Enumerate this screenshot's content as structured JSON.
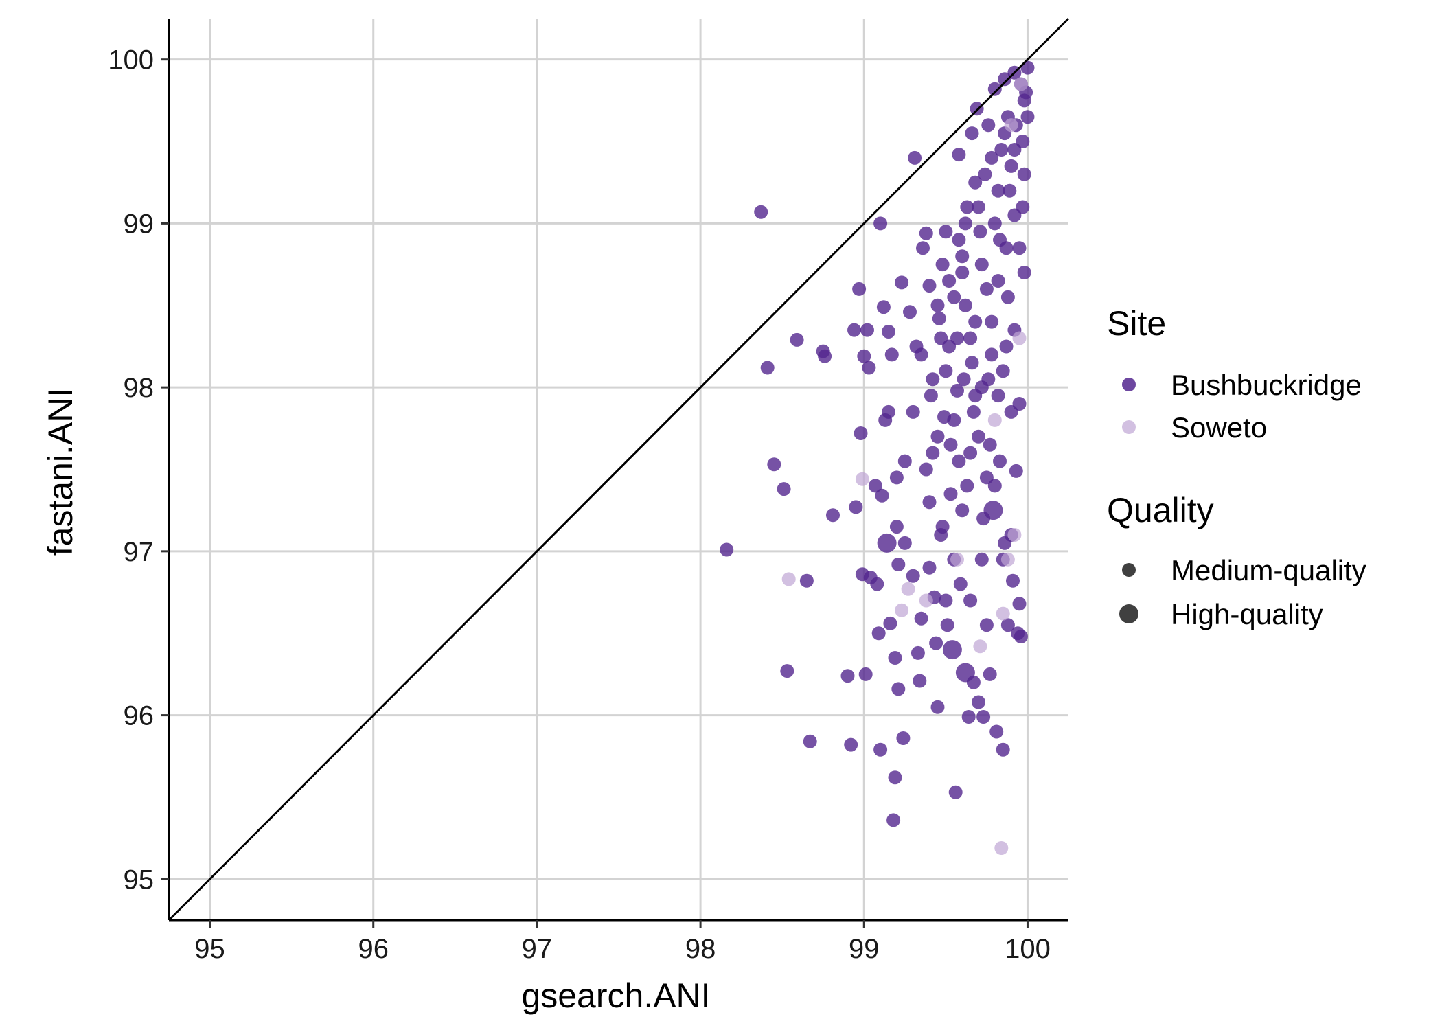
{
  "chart_data": {
    "type": "scatter",
    "xlabel": "gsearch.ANI",
    "ylabel": "fastani.ANI",
    "xlim": [
      94.75,
      100.25
    ],
    "ylim": [
      94.75,
      100.25
    ],
    "x_ticks": [
      95,
      96,
      97,
      98,
      99,
      100
    ],
    "y_ticks": [
      95,
      96,
      97,
      98,
      99,
      100
    ],
    "grid": true,
    "reference_line": "y = x",
    "legend_position": "right",
    "legend_groups": [
      {
        "title": "Site",
        "items": [
          {
            "label": "Bushbuckridge",
            "color": "#54278f"
          },
          {
            "label": "Soweto",
            "color": "#bfa5d4"
          }
        ]
      },
      {
        "title": "Quality",
        "items": [
          {
            "label": "Medium-quality",
            "size": "small"
          },
          {
            "label": "High-quality",
            "size": "large"
          }
        ]
      }
    ],
    "series": [
      {
        "name": "Bushbuckridge",
        "color": "#54278f",
        "points": [
          [
            98.37,
            99.07,
            "M"
          ],
          [
            99.31,
            99.4,
            "M"
          ],
          [
            99.1,
            99.0,
            "M"
          ],
          [
            98.16,
            97.01,
            "M"
          ],
          [
            98.41,
            98.12,
            "M"
          ],
          [
            98.45,
            97.53,
            "M"
          ],
          [
            98.51,
            97.38,
            "M"
          ],
          [
            98.53,
            96.27,
            "M"
          ],
          [
            98.59,
            98.29,
            "M"
          ],
          [
            98.65,
            96.82,
            "M"
          ],
          [
            98.67,
            95.84,
            "M"
          ],
          [
            98.75,
            98.22,
            "M"
          ],
          [
            98.76,
            98.19,
            "M"
          ],
          [
            98.81,
            97.22,
            "M"
          ],
          [
            98.9,
            96.24,
            "M"
          ],
          [
            98.92,
            95.82,
            "M"
          ],
          [
            98.94,
            98.35,
            "M"
          ],
          [
            98.95,
            97.27,
            "M"
          ],
          [
            98.97,
            98.6,
            "M"
          ],
          [
            98.98,
            97.72,
            "M"
          ],
          [
            98.99,
            96.86,
            "M"
          ],
          [
            99.0,
            98.19,
            "M"
          ],
          [
            99.01,
            96.25,
            "M"
          ],
          [
            99.02,
            98.35,
            "M"
          ],
          [
            99.03,
            98.12,
            "M"
          ],
          [
            99.04,
            96.84,
            "M"
          ],
          [
            99.07,
            97.4,
            "M"
          ],
          [
            99.08,
            96.8,
            "M"
          ],
          [
            99.09,
            96.5,
            "M"
          ],
          [
            99.1,
            95.79,
            "M"
          ],
          [
            99.11,
            97.34,
            "M"
          ],
          [
            99.12,
            98.49,
            "M"
          ],
          [
            99.13,
            97.8,
            "M"
          ],
          [
            99.14,
            97.05,
            "L"
          ],
          [
            99.15,
            98.34,
            "M"
          ],
          [
            99.16,
            96.56,
            "M"
          ],
          [
            99.17,
            98.2,
            "M"
          ],
          [
            99.18,
            95.36,
            "M"
          ],
          [
            99.19,
            95.62,
            "M"
          ],
          [
            99.19,
            96.35,
            "M"
          ],
          [
            99.2,
            97.15,
            "M"
          ],
          [
            99.21,
            96.92,
            "M"
          ],
          [
            99.21,
            96.16,
            "M"
          ],
          [
            99.24,
            95.86,
            "M"
          ],
          [
            99.23,
            98.64,
            "M"
          ],
          [
            99.25,
            97.55,
            "M"
          ],
          [
            99.28,
            98.46,
            "M"
          ],
          [
            99.3,
            96.85,
            "M"
          ],
          [
            99.32,
            98.25,
            "M"
          ],
          [
            99.33,
            96.38,
            "M"
          ],
          [
            99.34,
            96.21,
            "M"
          ],
          [
            99.35,
            96.59,
            "M"
          ],
          [
            99.36,
            98.85,
            "M"
          ],
          [
            99.38,
            98.94,
            "M"
          ],
          [
            99.4,
            98.62,
            "M"
          ],
          [
            99.41,
            97.95,
            "M"
          ],
          [
            99.42,
            97.6,
            "M"
          ],
          [
            99.43,
            96.72,
            "M"
          ],
          [
            99.44,
            96.44,
            "M"
          ],
          [
            99.45,
            96.05,
            "M"
          ],
          [
            99.46,
            98.42,
            "M"
          ],
          [
            99.47,
            97.1,
            "M"
          ],
          [
            99.48,
            98.75,
            "M"
          ],
          [
            99.49,
            97.82,
            "M"
          ],
          [
            99.5,
            98.95,
            "M"
          ],
          [
            99.51,
            96.55,
            "M"
          ],
          [
            99.52,
            98.25,
            "M"
          ],
          [
            99.53,
            97.35,
            "M"
          ],
          [
            99.54,
            96.4,
            "L"
          ],
          [
            99.55,
            98.55,
            "M"
          ],
          [
            99.56,
            95.53,
            "M"
          ],
          [
            99.57,
            97.98,
            "M"
          ],
          [
            99.58,
            99.42,
            "M"
          ],
          [
            99.59,
            96.8,
            "M"
          ],
          [
            99.6,
            98.8,
            "M"
          ],
          [
            99.61,
            98.05,
            "M"
          ],
          [
            99.62,
            96.26,
            "L"
          ],
          [
            99.63,
            99.1,
            "M"
          ],
          [
            99.64,
            95.99,
            "M"
          ],
          [
            99.65,
            97.6,
            "M"
          ],
          [
            99.66,
            99.55,
            "M"
          ],
          [
            99.67,
            96.2,
            "M"
          ],
          [
            99.68,
            98.4,
            "M"
          ],
          [
            99.69,
            99.7,
            "M"
          ],
          [
            99.7,
            96.08,
            "M"
          ],
          [
            99.71,
            98.95,
            "M"
          ],
          [
            99.72,
            96.95,
            "M"
          ],
          [
            99.73,
            95.99,
            "M"
          ],
          [
            99.74,
            99.3,
            "M"
          ],
          [
            99.75,
            97.45,
            "M"
          ],
          [
            99.76,
            99.6,
            "M"
          ],
          [
            99.77,
            96.25,
            "M"
          ],
          [
            99.78,
            98.2,
            "M"
          ],
          [
            99.79,
            97.25,
            "L"
          ],
          [
            99.8,
            99.0,
            "M"
          ],
          [
            99.81,
            95.9,
            "M"
          ],
          [
            99.82,
            98.65,
            "M"
          ],
          [
            99.83,
            97.55,
            "M"
          ],
          [
            99.84,
            99.45,
            "M"
          ],
          [
            99.85,
            95.79,
            "M"
          ],
          [
            99.86,
            97.05,
            "M"
          ],
          [
            99.87,
            98.85,
            "M"
          ],
          [
            99.88,
            96.55,
            "M"
          ],
          [
            99.89,
            99.2,
            "M"
          ],
          [
            99.9,
            97.85,
            "M"
          ],
          [
            99.91,
            96.82,
            "M"
          ],
          [
            99.92,
            98.35,
            "M"
          ],
          [
            99.93,
            97.49,
            "M"
          ],
          [
            99.94,
            96.5,
            "M"
          ],
          [
            99.95,
            98.85,
            "M"
          ],
          [
            99.96,
            96.48,
            "M"
          ],
          [
            99.97,
            99.5,
            "M"
          ],
          [
            99.98,
            98.7,
            "M"
          ],
          [
            99.99,
            99.8,
            "M"
          ],
          [
            100.0,
            99.95,
            "M"
          ],
          [
            100.0,
            99.65,
            "M"
          ],
          [
            99.92,
            99.92,
            "M"
          ],
          [
            99.86,
            99.88,
            "M"
          ],
          [
            99.8,
            99.82,
            "M"
          ],
          [
            99.9,
            99.35,
            "M"
          ],
          [
            99.7,
            99.1,
            "M"
          ],
          [
            99.6,
            98.7,
            "M"
          ],
          [
            99.5,
            98.1,
            "M"
          ],
          [
            99.45,
            97.7,
            "M"
          ],
          [
            99.4,
            97.3,
            "M"
          ],
          [
            99.55,
            97.8,
            "M"
          ],
          [
            99.65,
            98.3,
            "M"
          ],
          [
            99.75,
            98.6,
            "M"
          ],
          [
            99.85,
            98.1,
            "M"
          ],
          [
            99.95,
            97.9,
            "M"
          ],
          [
            99.25,
            97.05,
            "M"
          ],
          [
            99.3,
            97.85,
            "M"
          ],
          [
            99.2,
            97.45,
            "M"
          ],
          [
            99.15,
            97.85,
            "M"
          ],
          [
            99.55,
            96.95,
            "M"
          ],
          [
            99.65,
            96.7,
            "M"
          ],
          [
            99.75,
            96.55,
            "M"
          ],
          [
            99.85,
            96.95,
            "M"
          ],
          [
            99.95,
            96.68,
            "M"
          ],
          [
            99.35,
            98.2,
            "M"
          ],
          [
            99.45,
            98.5,
            "M"
          ],
          [
            99.58,
            98.9,
            "M"
          ],
          [
            99.68,
            99.25,
            "M"
          ],
          [
            99.78,
            99.4,
            "M"
          ],
          [
            99.88,
            99.65,
            "M"
          ],
          [
            99.98,
            99.75,
            "M"
          ],
          [
            99.5,
            96.7,
            "M"
          ],
          [
            99.6,
            97.25,
            "M"
          ],
          [
            99.7,
            97.7,
            "M"
          ],
          [
            99.8,
            97.4,
            "M"
          ],
          [
            99.9,
            97.1,
            "M"
          ],
          [
            99.4,
            96.9,
            "M"
          ],
          [
            99.48,
            97.15,
            "M"
          ],
          [
            99.58,
            97.55,
            "M"
          ],
          [
            99.68,
            97.95,
            "M"
          ],
          [
            99.78,
            98.4,
            "M"
          ],
          [
            99.88,
            98.55,
            "M"
          ],
          [
            99.98,
            99.3,
            "M"
          ],
          [
            99.52,
            98.65,
            "M"
          ],
          [
            99.62,
            98.5,
            "M"
          ],
          [
            99.72,
            98.0,
            "M"
          ],
          [
            99.82,
            97.95,
            "M"
          ],
          [
            99.92,
            99.05,
            "M"
          ],
          [
            99.57,
            98.3,
            "M"
          ],
          [
            99.67,
            97.85,
            "M"
          ],
          [
            99.77,
            97.65,
            "M"
          ],
          [
            99.87,
            98.25,
            "M"
          ],
          [
            99.97,
            99.1,
            "M"
          ],
          [
            99.42,
            98.05,
            "M"
          ],
          [
            99.47,
            98.3,
            "M"
          ],
          [
            99.53,
            97.65,
            "M"
          ],
          [
            99.63,
            97.4,
            "M"
          ],
          [
            99.73,
            97.2,
            "M"
          ],
          [
            99.83,
            98.9,
            "M"
          ],
          [
            99.93,
            99.6,
            "M"
          ],
          [
            99.38,
            97.5,
            "M"
          ],
          [
            99.62,
            99.0,
            "M"
          ],
          [
            99.72,
            98.75,
            "M"
          ],
          [
            99.82,
            99.2,
            "M"
          ],
          [
            99.92,
            99.45,
            "M"
          ],
          [
            99.66,
            98.15,
            "M"
          ],
          [
            99.76,
            98.05,
            "M"
          ],
          [
            99.86,
            99.55,
            "M"
          ],
          [
            99.96,
            99.85,
            "M"
          ]
        ]
      },
      {
        "name": "Soweto",
        "color": "#bfa5d4",
        "points": [
          [
            98.54,
            96.83,
            "M"
          ],
          [
            98.99,
            97.44,
            "M"
          ],
          [
            99.27,
            96.77,
            "M"
          ],
          [
            99.23,
            96.64,
            "M"
          ],
          [
            99.38,
            96.7,
            "M"
          ],
          [
            99.57,
            96.95,
            "M"
          ],
          [
            99.71,
            96.42,
            "M"
          ],
          [
            99.84,
            95.19,
            "M"
          ],
          [
            99.85,
            96.62,
            "M"
          ],
          [
            99.92,
            97.1,
            "M"
          ],
          [
            99.95,
            98.3,
            "M"
          ],
          [
            99.9,
            99.6,
            "M"
          ],
          [
            99.96,
            99.85,
            "M"
          ],
          [
            99.8,
            97.8,
            "M"
          ],
          [
            99.88,
            96.95,
            "M"
          ]
        ]
      }
    ]
  }
}
